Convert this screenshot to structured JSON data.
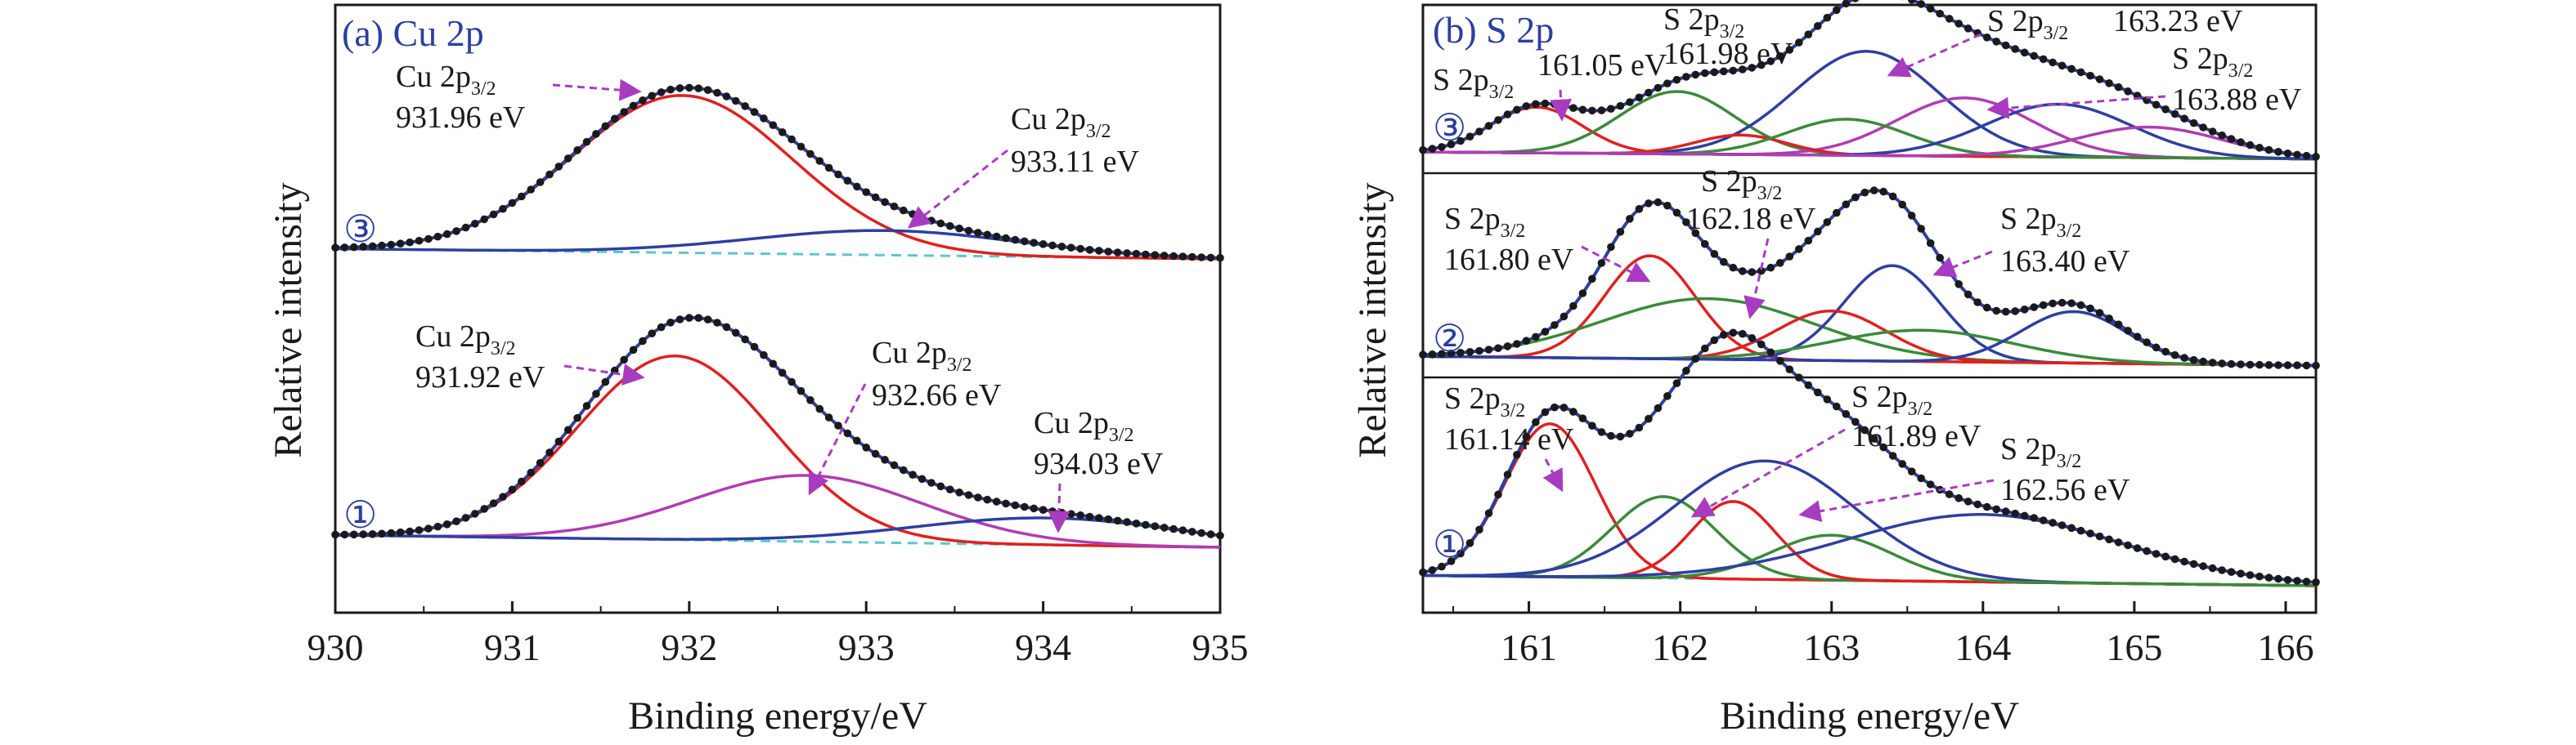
{
  "colors": {
    "red": "#e02020",
    "blue": "#2e3fa0",
    "green": "#3a8a3a",
    "magenta": "#b03cb4",
    "baseline": "#5bc7d0",
    "data_points": "#1a1a1a",
    "arrow": "#a83cc0",
    "title": "#2b3f9e"
  },
  "chart_data": [
    {
      "type": "line",
      "title": "(a) Cu 2p",
      "xlabel": "Binding energy/eV",
      "ylabel": "Relative intensity",
      "xlim": [
        930,
        935
      ],
      "x_ticks": [
        "930",
        "931",
        "932",
        "933",
        "934",
        "935"
      ],
      "grid": false,
      "stacks": [
        {
          "label": "③",
          "components": [
            {
              "center": 931.96,
              "height": 0.77,
              "width": 0.62,
              "color": "red"
            },
            {
              "center": 933.11,
              "height": 0.12,
              "width": 0.75,
              "color": "blue"
            }
          ],
          "annotations": [
            {
              "species": "Cu 2p",
              "sub": "3/2",
              "energy": "931.96 eV"
            },
            {
              "species": "Cu 2p",
              "sub": "3/2",
              "energy": "933.11 eV"
            }
          ]
        },
        {
          "label": "①",
          "components": [
            {
              "center": 931.92,
              "height": 0.75,
              "width": 0.55,
              "color": "red"
            },
            {
              "center": 932.66,
              "height": 0.27,
              "width": 0.65,
              "color": "magenta"
            },
            {
              "center": 934.03,
              "height": 0.11,
              "width": 0.75,
              "color": "blue"
            }
          ],
          "annotations": [
            {
              "species": "Cu 2p",
              "sub": "3/2",
              "energy": "931.92 eV"
            },
            {
              "species": "Cu 2p",
              "sub": "3/2",
              "energy": "932.66 eV"
            },
            {
              "species": "Cu 2p",
              "sub": "3/2",
              "energy": "934.03 eV"
            }
          ]
        }
      ]
    },
    {
      "type": "line",
      "title": "(b) S 2p",
      "xlabel": "Binding energy/eV",
      "ylabel": "Relative intensity",
      "xlim": [
        160.3,
        166.2
      ],
      "x_ticks": [
        "161",
        "162",
        "163",
        "164",
        "165",
        "166"
      ],
      "grid": false,
      "stacks": [
        {
          "label": "③",
          "components": [
            {
              "center": 161.05,
              "height": 0.33,
              "width": 0.3,
              "color": "red"
            },
            {
              "center": 161.98,
              "height": 0.45,
              "width": 0.38,
              "color": "green"
            },
            {
              "center": 163.23,
              "height": 0.75,
              "width": 0.48,
              "color": "blue"
            },
            {
              "center": 163.88,
              "height": 0.42,
              "width": 0.45,
              "color": "magenta"
            },
            {
              "center": 162.4,
              "height": 0.14,
              "width": 0.3,
              "color": "red"
            },
            {
              "center": 163.1,
              "height": 0.26,
              "width": 0.4,
              "color": "green"
            },
            {
              "center": 164.5,
              "height": 0.38,
              "width": 0.48,
              "color": "blue"
            },
            {
              "center": 165.1,
              "height": 0.22,
              "width": 0.48,
              "color": "magenta"
            }
          ],
          "annotations": [
            {
              "species": "S 2p",
              "sub": "3/2",
              "energy": "161.05 eV"
            },
            {
              "species": "S 2p",
              "sub": "3/2",
              "energy": "161.98 eV"
            },
            {
              "species": "S 2p",
              "sub": "3/2",
              "energy": "163.23 eV"
            },
            {
              "species": "S 2p",
              "sub": "3/2",
              "energy": "163.88 eV"
            }
          ]
        },
        {
          "label": "②",
          "components": [
            {
              "center": 161.8,
              "height": 0.56,
              "width": 0.3,
              "color": "red"
            },
            {
              "center": 162.18,
              "height": 0.33,
              "width": 0.7,
              "color": "green"
            },
            {
              "center": 163.4,
              "height": 0.52,
              "width": 0.32,
              "color": "blue"
            },
            {
              "center": 163.0,
              "height": 0.27,
              "width": 0.36,
              "color": "red"
            },
            {
              "center": 163.6,
              "height": 0.17,
              "width": 0.6,
              "color": "green"
            },
            {
              "center": 164.6,
              "height": 0.28,
              "width": 0.35,
              "color": "blue"
            }
          ],
          "annotations": [
            {
              "species": "S 2p",
              "sub": "3/2",
              "energy": "161.80 eV"
            },
            {
              "species": "S 2p",
              "sub": "3/2",
              "energy": "162.18 eV"
            },
            {
              "species": "S 2p",
              "sub": "3/2",
              "energy": "163.40 eV"
            }
          ]
        },
        {
          "label": "①",
          "components": [
            {
              "center": 161.14,
              "height": 0.75,
              "width": 0.3,
              "color": "red"
            },
            {
              "center": 161.89,
              "height": 0.4,
              "width": 0.34,
              "color": "green"
            },
            {
              "center": 162.56,
              "height": 0.58,
              "width": 0.6,
              "color": "blue"
            },
            {
              "center": 162.35,
              "height": 0.38,
              "width": 0.28,
              "color": "red"
            },
            {
              "center": 163.0,
              "height": 0.22,
              "width": 0.4,
              "color": "green"
            },
            {
              "center": 164.0,
              "height": 0.33,
              "width": 0.9,
              "color": "blue"
            }
          ],
          "annotations": [
            {
              "species": "S 2p",
              "sub": "3/2",
              "energy": "161.14 eV"
            },
            {
              "species": "S 2p",
              "sub": "3/2",
              "energy": "161.89 eV"
            },
            {
              "species": "S 2p",
              "sub": "3/2",
              "energy": "162.56 eV"
            }
          ]
        }
      ]
    }
  ]
}
